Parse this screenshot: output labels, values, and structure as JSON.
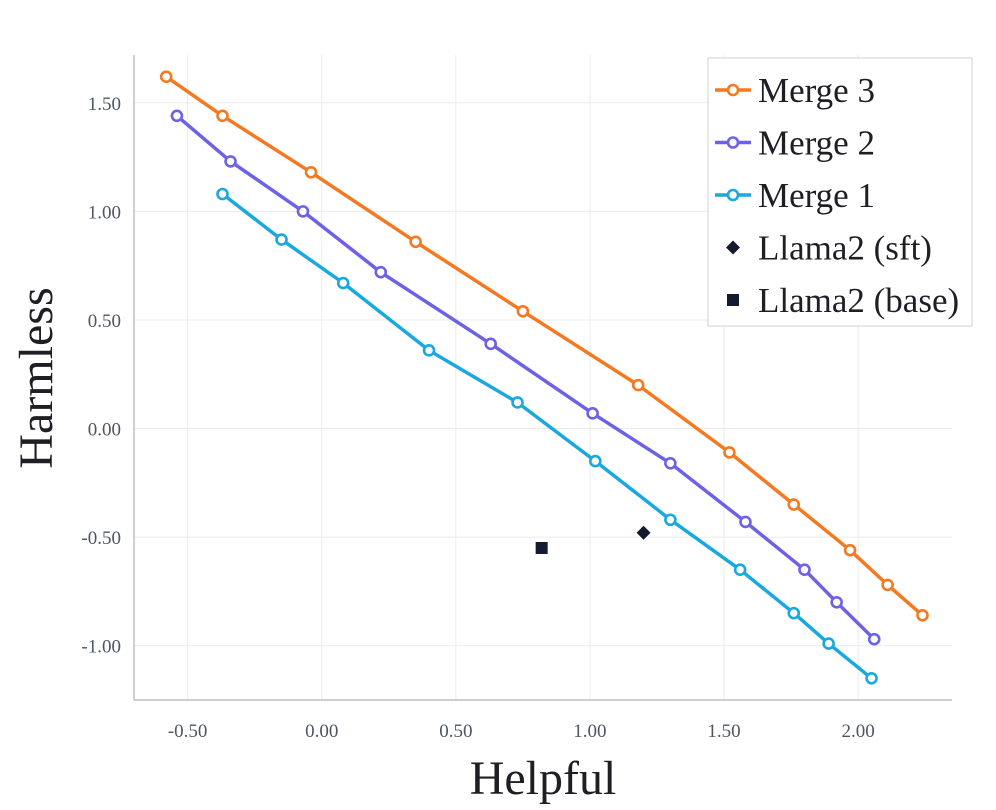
{
  "chart_data": {
    "type": "line",
    "title": "",
    "xlabel": "Helpful",
    "ylabel": "Harmless",
    "xlim": [
      -0.7,
      2.35
    ],
    "ylim": [
      -1.25,
      1.72
    ],
    "xticks": [
      -0.5,
      0.0,
      0.5,
      1.0,
      1.5,
      2.0
    ],
    "xtick_labels": [
      "-0.50",
      "0.00",
      "0.50",
      "1.00",
      "1.50",
      "2.00"
    ],
    "yticks": [
      -1.0,
      -0.5,
      0.0,
      0.5,
      1.0,
      1.5
    ],
    "ytick_labels": [
      "-1.00",
      "-0.50",
      "0.00",
      "0.50",
      "1.00",
      "1.50"
    ],
    "grid": true,
    "legend_position": "top-right",
    "series": [
      {
        "name": "Merge 3",
        "color": "#f47920",
        "marker": "circle",
        "points": [
          [
            -0.58,
            1.62
          ],
          [
            -0.37,
            1.44
          ],
          [
            -0.04,
            1.18
          ],
          [
            0.35,
            0.86
          ],
          [
            0.75,
            0.54
          ],
          [
            1.18,
            0.2
          ],
          [
            1.52,
            -0.11
          ],
          [
            1.76,
            -0.35
          ],
          [
            1.97,
            -0.56
          ],
          [
            2.11,
            -0.72
          ],
          [
            2.24,
            -0.86
          ]
        ]
      },
      {
        "name": "Merge 2",
        "color": "#6d62e6",
        "marker": "circle",
        "points": [
          [
            -0.54,
            1.44
          ],
          [
            -0.34,
            1.23
          ],
          [
            -0.07,
            1.0
          ],
          [
            0.22,
            0.72
          ],
          [
            0.63,
            0.39
          ],
          [
            1.01,
            0.07
          ],
          [
            1.3,
            -0.16
          ],
          [
            1.58,
            -0.43
          ],
          [
            1.8,
            -0.65
          ],
          [
            1.92,
            -0.8
          ],
          [
            2.06,
            -0.97
          ]
        ]
      },
      {
        "name": "Merge 1",
        "color": "#19a8e0",
        "marker": "circle",
        "points": [
          [
            -0.37,
            1.08
          ],
          [
            -0.15,
            0.87
          ],
          [
            0.08,
            0.67
          ],
          [
            0.4,
            0.36
          ],
          [
            0.73,
            0.12
          ],
          [
            1.02,
            -0.15
          ],
          [
            1.3,
            -0.42
          ],
          [
            1.56,
            -0.65
          ],
          [
            1.76,
            -0.85
          ],
          [
            1.89,
            -0.99
          ],
          [
            2.05,
            -1.15
          ]
        ]
      },
      {
        "name": "Llama2 (sft)",
        "color": "#141b2e",
        "marker": "diamond",
        "points": [
          [
            1.2,
            -0.48
          ]
        ]
      },
      {
        "name": "Llama2 (base)",
        "color": "#141b2e",
        "marker": "square",
        "points": [
          [
            0.82,
            -0.55
          ]
        ]
      }
    ]
  }
}
